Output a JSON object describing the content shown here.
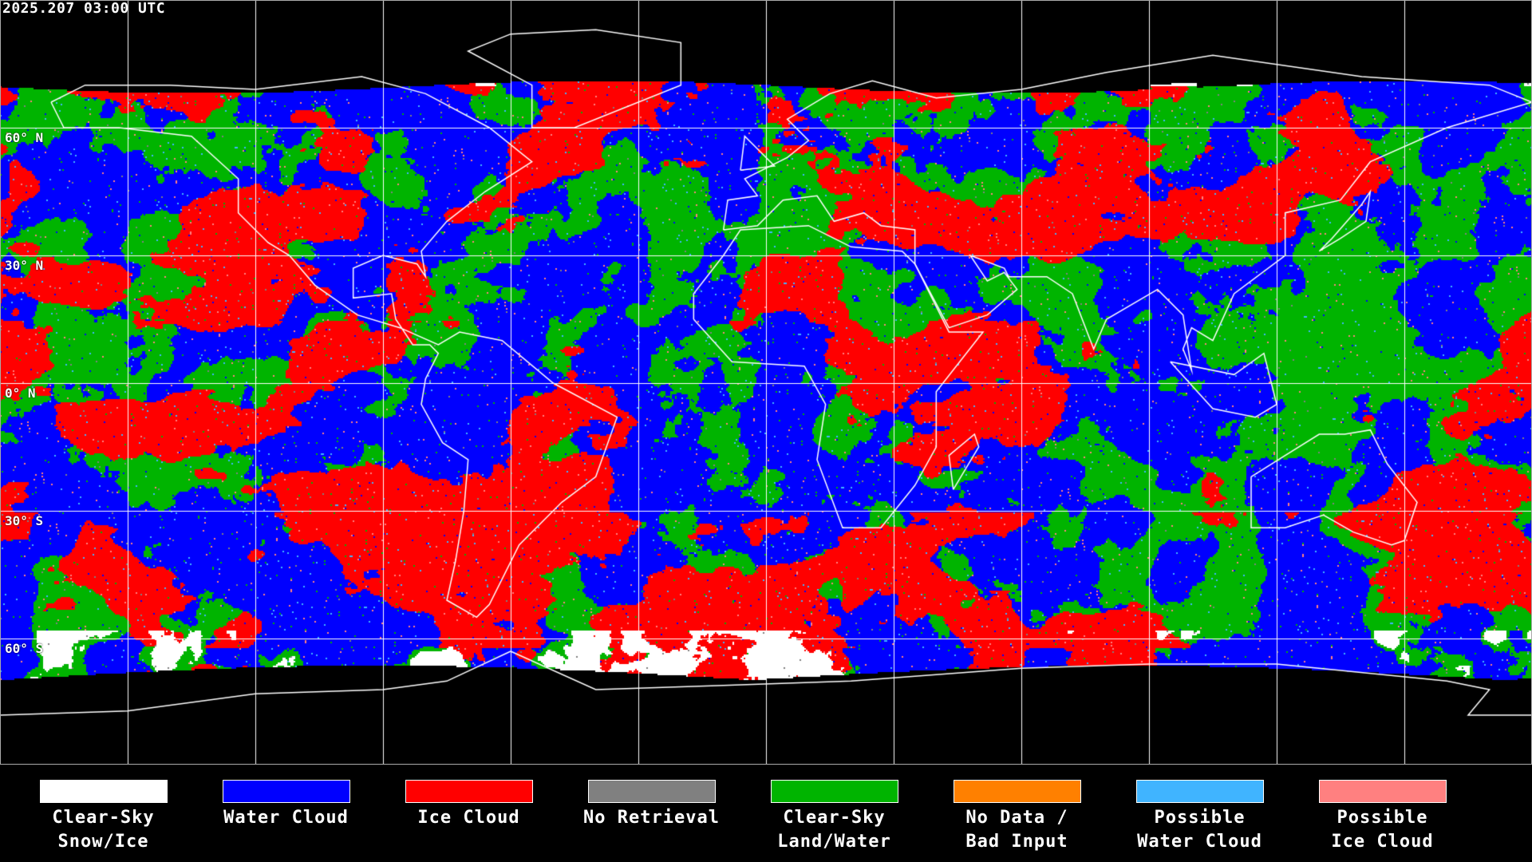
{
  "header": {
    "timestamp": "2025.207 03:00 UTC"
  },
  "map": {
    "projection": "equirectangular",
    "grid_spacing_deg": 30,
    "lat_labels": [
      "60° N",
      "30° N",
      "0° N",
      "30° S",
      "60° S"
    ]
  },
  "legend": [
    {
      "line1": "Clear-Sky",
      "line2": "Snow/Ice",
      "color": "#ffffff"
    },
    {
      "line1": "Water Cloud",
      "line2": "",
      "color": "#0000ff"
    },
    {
      "line1": "Ice Cloud",
      "line2": "",
      "color": "#ff0000"
    },
    {
      "line1": "No Retrieval",
      "line2": "",
      "color": "#808080"
    },
    {
      "line1": "Clear-Sky",
      "line2": "Land/Water",
      "color": "#00b400"
    },
    {
      "line1": "No Data /",
      "line2": "Bad Input",
      "color": "#ff8000"
    },
    {
      "line1": "Possible",
      "line2": "Water Cloud",
      "color": "#40b4ff"
    },
    {
      "line1": "Possible",
      "line2": "Ice Cloud",
      "color": "#ff8080"
    }
  ]
}
